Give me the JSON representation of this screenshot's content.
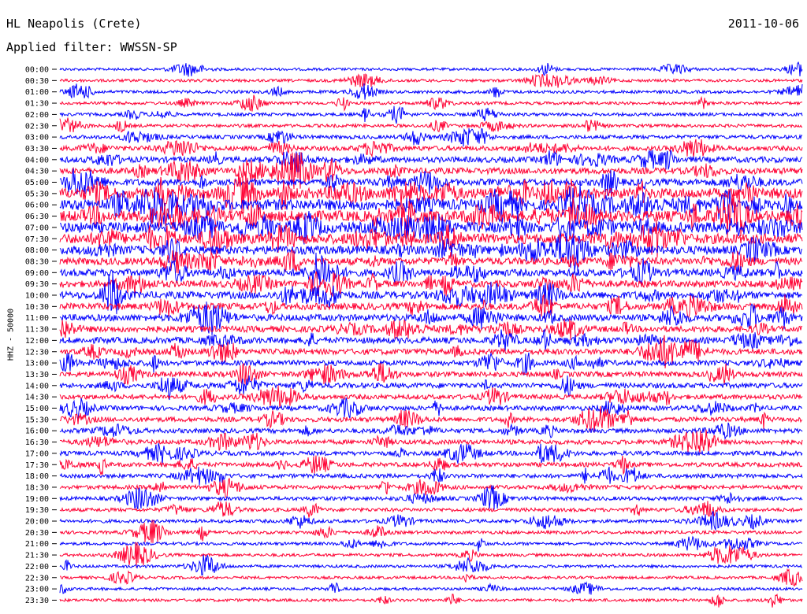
{
  "header": {
    "station": "HL Neapolis (Crete)",
    "date": "2011-10-06",
    "filter": "Applied filter: WWSSN-SP"
  },
  "chart_data": {
    "type": "line",
    "title": "HL Neapolis (Crete)",
    "date": "2011-10-06",
    "filter": "Applied filter: WWSSN-SP",
    "ylabel": "HHZ - 50000",
    "row_labels": [
      "00:00",
      "00:30",
      "01:00",
      "01:30",
      "02:00",
      "02:30",
      "03:00",
      "03:30",
      "04:00",
      "04:30",
      "05:00",
      "05:30",
      "06:00",
      "06:30",
      "07:00",
      "07:30",
      "08:00",
      "08:30",
      "09:00",
      "09:30",
      "10:00",
      "10:30",
      "11:00",
      "11:30",
      "12:00",
      "12:30",
      "13:00",
      "13:30",
      "14:00",
      "14:30",
      "15:00",
      "15:30",
      "16:00",
      "16:30",
      "17:00",
      "17:30",
      "18:00",
      "18:30",
      "19:00",
      "19:30",
      "20:00",
      "20:30",
      "21:00",
      "21:30",
      "22:00",
      "22:30",
      "23:00",
      "23:30"
    ],
    "series_colors": [
      "#0000ff",
      "#ff0033"
    ],
    "row_activity": [
      0.08,
      0.1,
      0.12,
      0.12,
      0.14,
      0.14,
      0.2,
      0.3,
      0.4,
      0.45,
      0.5,
      0.9,
      0.95,
      0.95,
      0.9,
      0.85,
      0.7,
      0.55,
      0.55,
      0.5,
      0.55,
      0.5,
      0.5,
      0.45,
      0.45,
      0.4,
      0.35,
      0.35,
      0.35,
      0.3,
      0.3,
      0.3,
      0.28,
      0.28,
      0.26,
      0.26,
      0.24,
      0.22,
      0.2,
      0.18,
      0.16,
      0.14,
      0.12,
      0.12,
      0.1,
      0.1,
      0.1,
      0.1
    ]
  }
}
